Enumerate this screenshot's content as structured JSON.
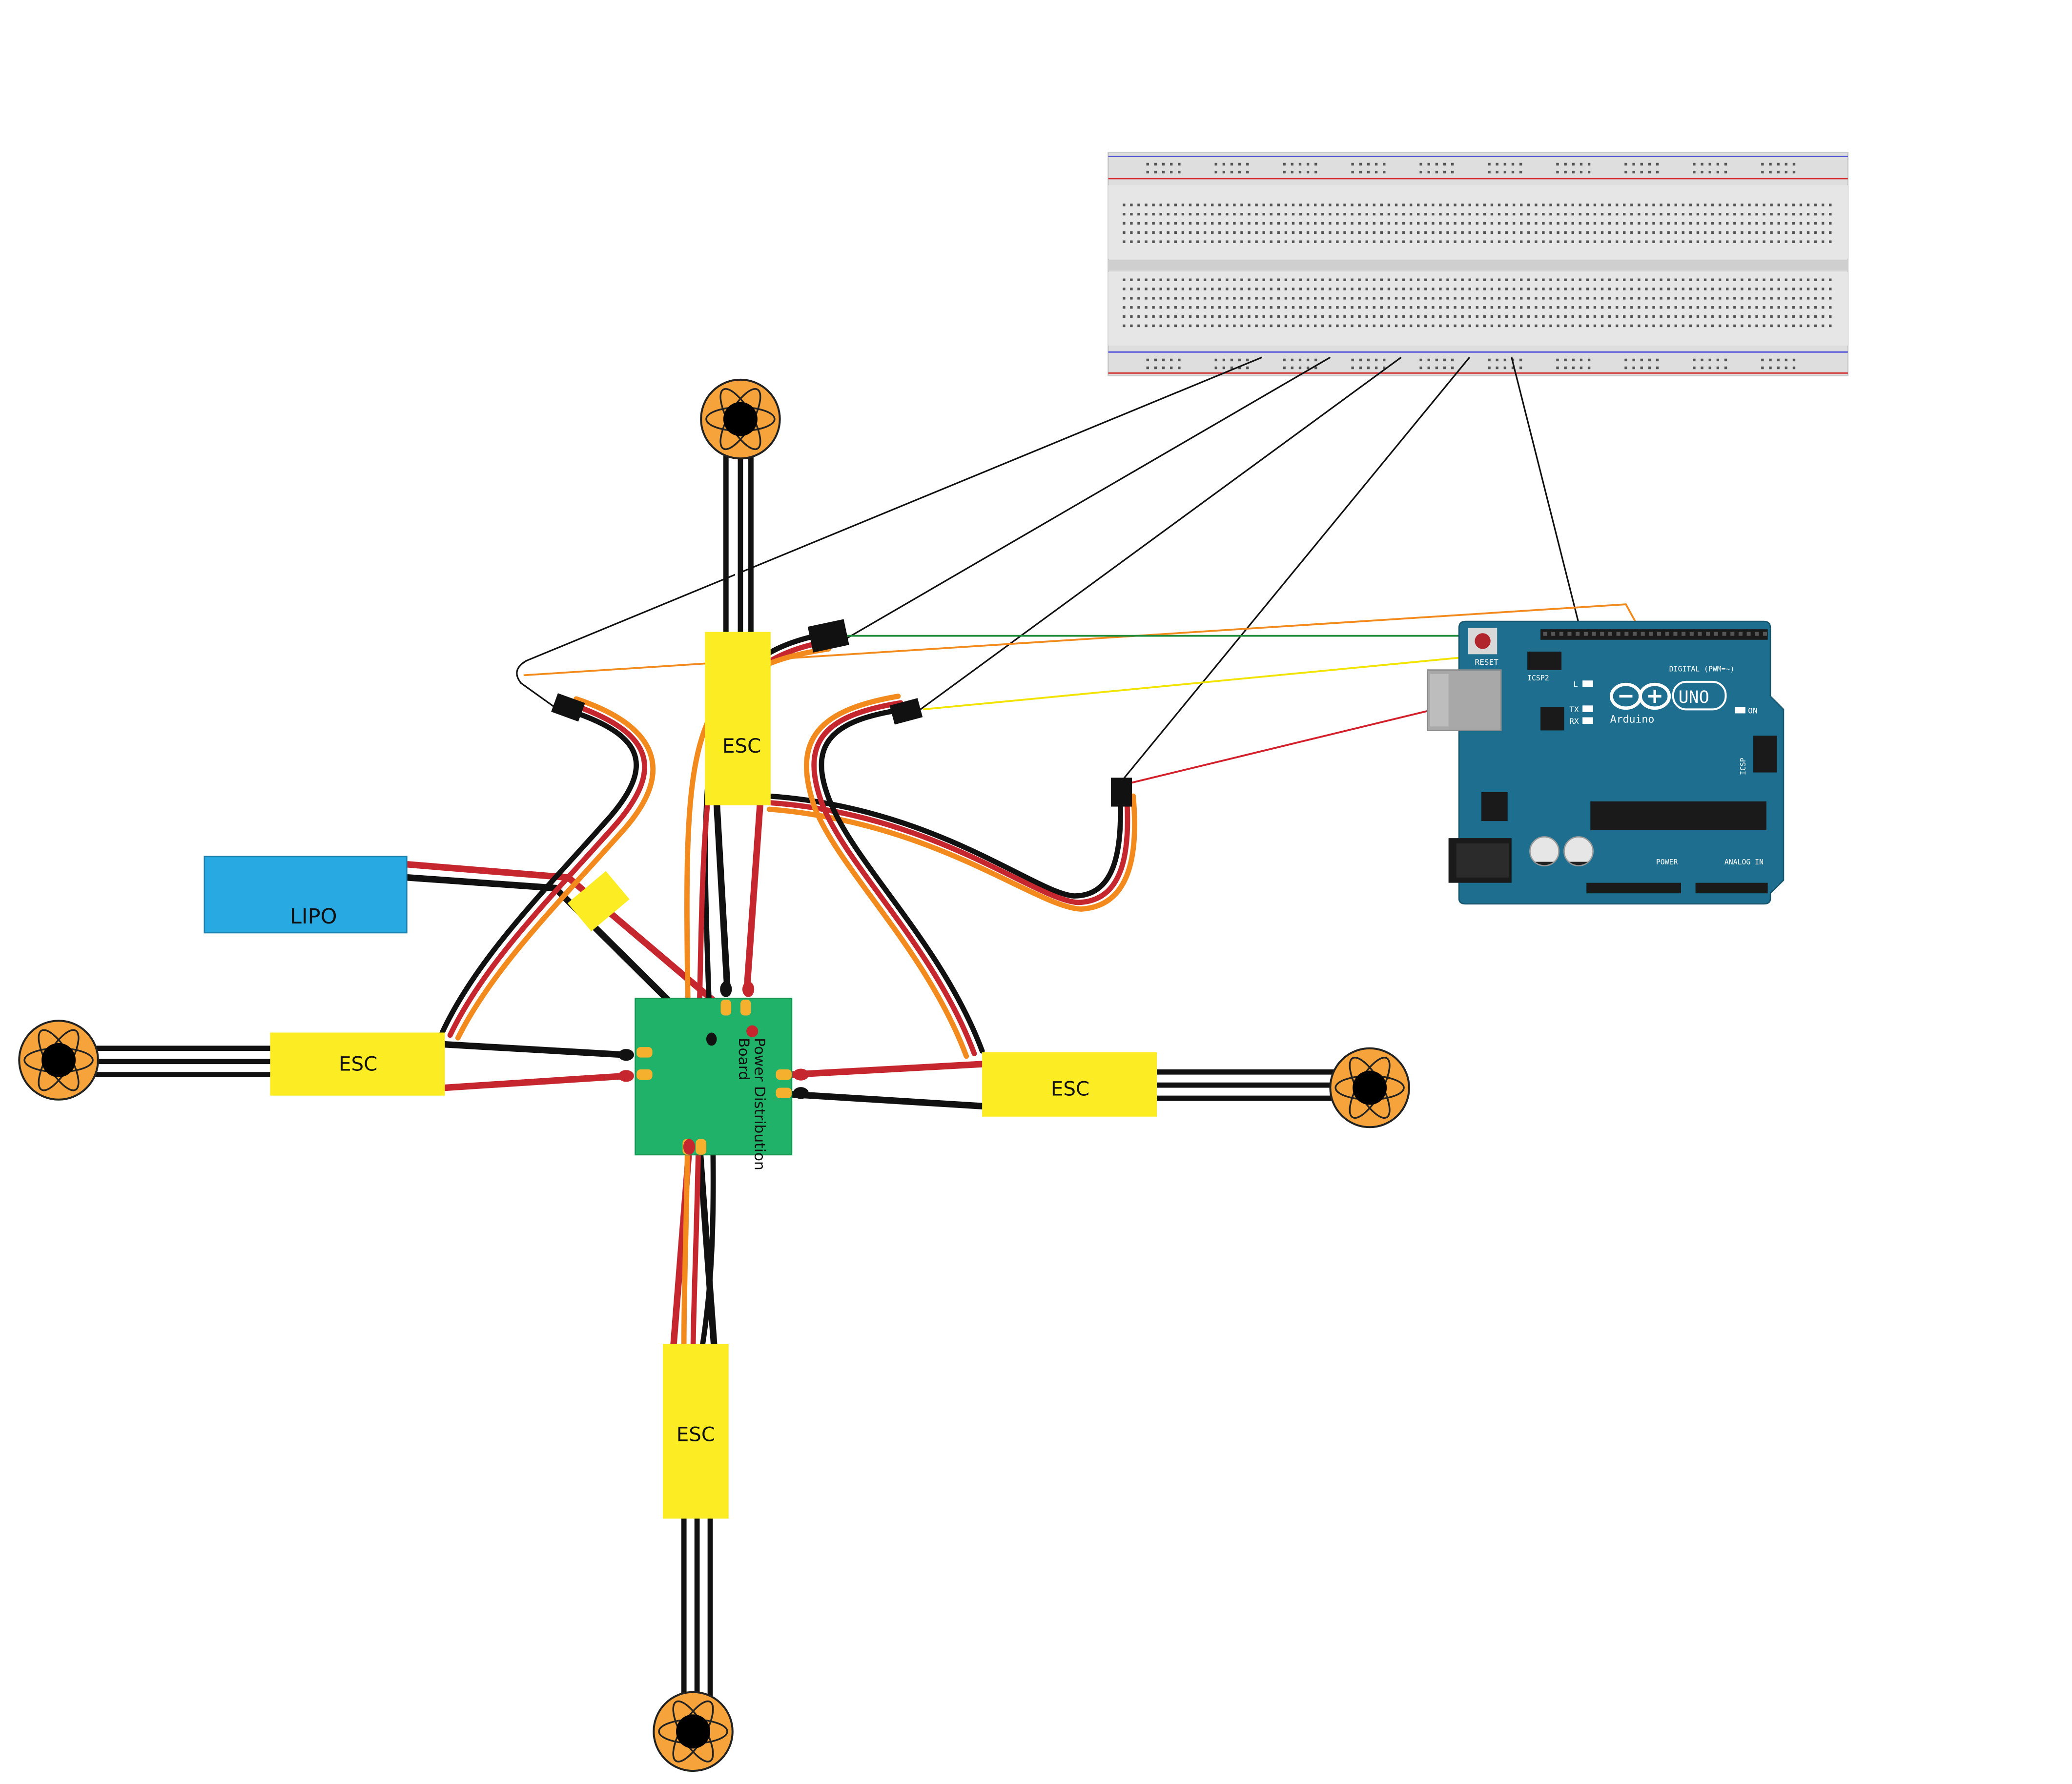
{
  "labels": {
    "esc_top": "ESC",
    "esc_left": "ESC",
    "esc_right": "ESC",
    "esc_bottom": "ESC",
    "lipo": "LIPO",
    "pdb_line1": "Power Distribution",
    "pdb_line2": "Board"
  },
  "arduino": {
    "brand": "Arduino",
    "model": "UNO",
    "reset": "RESET",
    "icsp2": "ICSP2",
    "icsp": "ICSP",
    "digital": "DIGITAL (PWM=~)",
    "on": "ON",
    "l": "L",
    "tx": "TX",
    "rx": "RX",
    "power": "POWER",
    "analog": "ANALOG IN"
  },
  "colors": {
    "esc": "#fcec23",
    "lipo": "#29a9e1",
    "pdb": "#20b268",
    "arduino": "#1e6f8f",
    "motor": "#f5a33a",
    "wire_red": "#c6262e",
    "wire_orange": "#f28a1e",
    "wire_black": "#111111",
    "sig_green": "#1e8a3a",
    "sig_yellow": "#f2e400",
    "sig_orange": "#f28a1e",
    "sig_red": "#d4202a",
    "breadboard": "#dcdcdc"
  }
}
